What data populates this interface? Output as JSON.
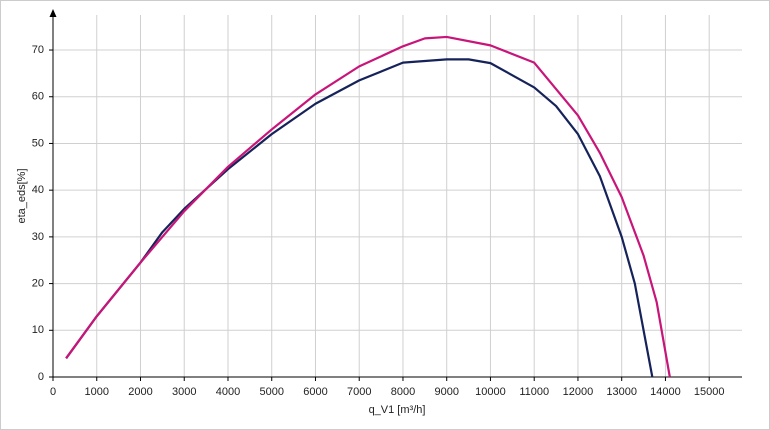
{
  "chart_data": {
    "type": "line",
    "x_label": "q_V1 [m³/h]",
    "y_label": "eta_eds[%]",
    "xlim": [
      0,
      15750
    ],
    "xticks": [
      0,
      1000,
      2000,
      3000,
      4000,
      5000,
      6000,
      7000,
      8000,
      9000,
      10000,
      11000,
      12000,
      13000,
      14000,
      15000
    ],
    "ylim": [
      0,
      77.5
    ],
    "yticks": [
      0,
      10,
      20,
      30,
      40,
      50,
      60,
      70
    ],
    "grid": true,
    "series": [
      {
        "color": "#16235a",
        "x": [
          300,
          1000,
          2000,
          2500,
          3000,
          4000,
          5000,
          6000,
          7000,
          8000,
          9000,
          9500,
          10000,
          11000,
          11500,
          12000,
          12500,
          13000,
          13300,
          13700
        ],
        "values": [
          4,
          13,
          24.5,
          31,
          36,
          44.5,
          52,
          58.5,
          63.5,
          67.3,
          68,
          68,
          67.2,
          62,
          58,
          52,
          43,
          30,
          20,
          0
        ]
      },
      {
        "color": "#c8157a",
        "x": [
          300,
          1000,
          2000,
          3000,
          4000,
          5000,
          6000,
          7000,
          8000,
          8500,
          9000,
          10000,
          11000,
          12000,
          12500,
          13000,
          13500,
          13800,
          14100
        ],
        "values": [
          4,
          13,
          24.5,
          35.5,
          45,
          53,
          60.5,
          66.5,
          70.8,
          72.5,
          72.8,
          71,
          67.3,
          56,
          48,
          38.5,
          26,
          16,
          0
        ]
      }
    ]
  }
}
